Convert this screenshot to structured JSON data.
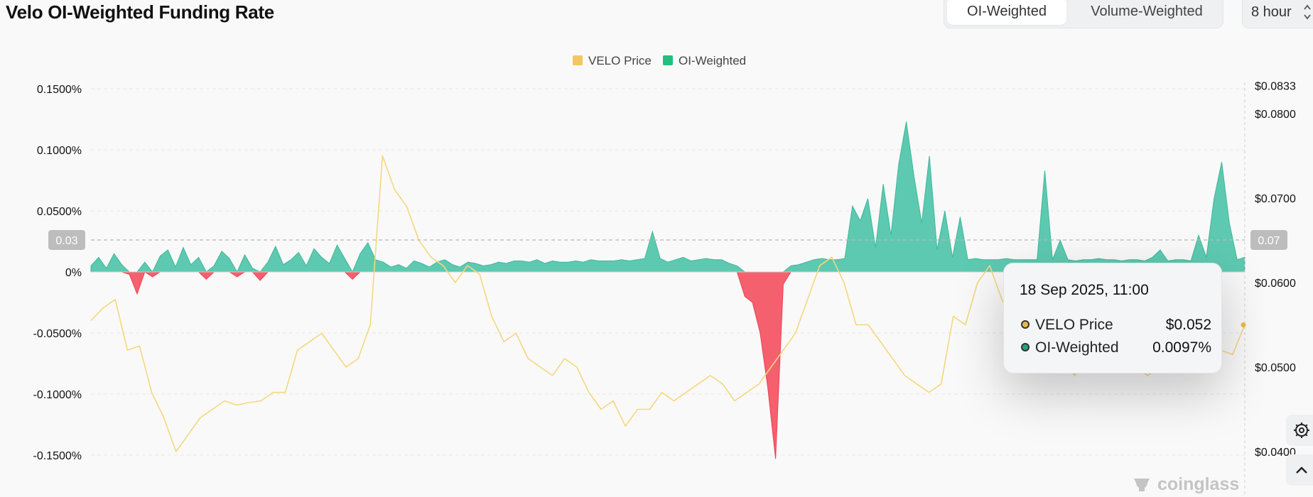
{
  "header": {
    "title": "Velo OI-Weighted Funding Rate"
  },
  "weighting": {
    "options": [
      "OI-Weighted",
      "Volume-Weighted"
    ],
    "selected": "OI-Weighted"
  },
  "interval": {
    "value": "8 hour"
  },
  "tooltip": {
    "date": "18 Sep 2025, 11:00",
    "rows": [
      {
        "label": "VELO Price",
        "value": "$0.052",
        "color": "#f2c14e"
      },
      {
        "label": "OI-Weighted",
        "value": "0.0097%",
        "color": "#26a17b"
      }
    ]
  },
  "crosshair": {
    "left_label": "0.03",
    "right_label": "0.07"
  },
  "watermark": "coinglass",
  "side_icons": [
    "settings-icon",
    "chevron-up-icon"
  ],
  "chart_data": {
    "type": "area",
    "title": "",
    "legend": [
      {
        "name": "VELO Price",
        "color": "#f0c760",
        "type": "line"
      },
      {
        "name": "OI-Weighted",
        "color": "#22c07e",
        "type": "area"
      }
    ],
    "legend_position": "top-center",
    "y_left": {
      "unit": "%",
      "ticks": [
        0.15,
        0.1,
        0.05,
        0,
        -0.05,
        -0.1,
        -0.15
      ],
      "tick_labels": [
        "0.1500%",
        "0.1000%",
        "0.0500%",
        "0%",
        "-0.0500%",
        "-0.1000%",
        "-0.1500%"
      ],
      "range": [
        -0.17,
        0.15
      ]
    },
    "y_right": {
      "ticks": [
        0.0833,
        0.08,
        0.07,
        0.06,
        0.05,
        0.04
      ],
      "tick_labels": [
        "$0.0833",
        "$0.0800",
        "$0.0700",
        "$0.0600",
        "$0.0500",
        "$0.0400"
      ],
      "range": [
        0.0383,
        0.0833
      ]
    },
    "grid": true,
    "positive_color": "#5ec9b1",
    "negative_color": "#f5606f",
    "series": [
      {
        "name": "OI-Weighted",
        "unit": "% funding rate",
        "values": [
          0.005,
          0.012,
          0.003,
          0.015,
          0.006,
          -0.002,
          -0.018,
          0.008,
          -0.004,
          0.013,
          0.018,
          0.004,
          0.02,
          0.006,
          0.012,
          -0.006,
          0.005,
          0.017,
          0.011,
          -0.004,
          0.014,
          0.003,
          -0.007,
          0.008,
          0.021,
          0.006,
          0.01,
          0.016,
          0.005,
          0.019,
          0.012,
          0.007,
          0.022,
          0.011,
          -0.006,
          0.015,
          0.024,
          0.01,
          0.008,
          0.004,
          0.006,
          0.003,
          0.009,
          0.007,
          0.004,
          0.008,
          0.01,
          0.006,
          0.004,
          0.008,
          0.007,
          0.005,
          0.006,
          0.008,
          0.007,
          0.009,
          0.009,
          0.008,
          0.01,
          0.007,
          0.009,
          0.008,
          0.008,
          0.009,
          0.008,
          0.01,
          0.009,
          0.009,
          0.009,
          0.01,
          0.009,
          0.01,
          0.011,
          0.033,
          0.011,
          0.008,
          0.01,
          0.012,
          0.009,
          0.01,
          0.011,
          0.01,
          0.01,
          0.007,
          0.005,
          -0.02,
          -0.025,
          -0.05,
          -0.095,
          -0.153,
          -0.01,
          0.005,
          0.006,
          0.008,
          0.01,
          0.011,
          0.01,
          0.01,
          0.011,
          0.054,
          0.042,
          0.06,
          0.02,
          0.072,
          0.03,
          0.088,
          0.123,
          0.078,
          0.04,
          0.095,
          0.018,
          0.05,
          0.012,
          0.045,
          0.01,
          0.011,
          0.01,
          0.01,
          0.01,
          0.011,
          0.01,
          0.01,
          0.01,
          0.01,
          0.083,
          0.01,
          0.026,
          0.01,
          0.009,
          0.01,
          0.01,
          0.011,
          0.01,
          0.01,
          0.009,
          0.01,
          0.01,
          0.009,
          0.012,
          0.018,
          0.009,
          0.01,
          0.01,
          0.009,
          0.03,
          0.012,
          0.06,
          0.09,
          0.04,
          0.01,
          0.012
        ]
      },
      {
        "name": "VELO Price",
        "unit": "USD",
        "values": [
          0.0555,
          0.057,
          0.058,
          0.052,
          0.0525,
          0.047,
          0.044,
          0.04,
          0.042,
          0.044,
          0.045,
          0.046,
          0.0455,
          0.0458,
          0.046,
          0.047,
          0.047,
          0.052,
          0.053,
          0.054,
          0.052,
          0.05,
          0.051,
          0.055,
          0.075,
          0.071,
          0.069,
          0.065,
          0.063,
          0.062,
          0.06,
          0.062,
          0.061,
          0.056,
          0.053,
          0.054,
          0.051,
          0.05,
          0.049,
          0.051,
          0.05,
          0.047,
          0.045,
          0.046,
          0.043,
          0.045,
          0.045,
          0.047,
          0.046,
          0.047,
          0.048,
          0.049,
          0.048,
          0.046,
          0.047,
          0.048,
          0.05,
          0.052,
          0.054,
          0.058,
          0.062,
          0.063,
          0.06,
          0.055,
          0.055,
          0.053,
          0.051,
          0.049,
          0.048,
          0.047,
          0.048,
          0.056,
          0.055,
          0.06,
          0.062,
          0.058,
          0.055,
          0.054,
          0.053,
          0.052,
          0.051,
          0.049,
          0.052,
          0.051,
          0.05,
          0.05,
          0.05,
          0.049,
          0.05,
          0.051,
          0.051,
          0.052,
          0.052,
          0.052,
          0.0515,
          0.055
        ]
      }
    ]
  }
}
